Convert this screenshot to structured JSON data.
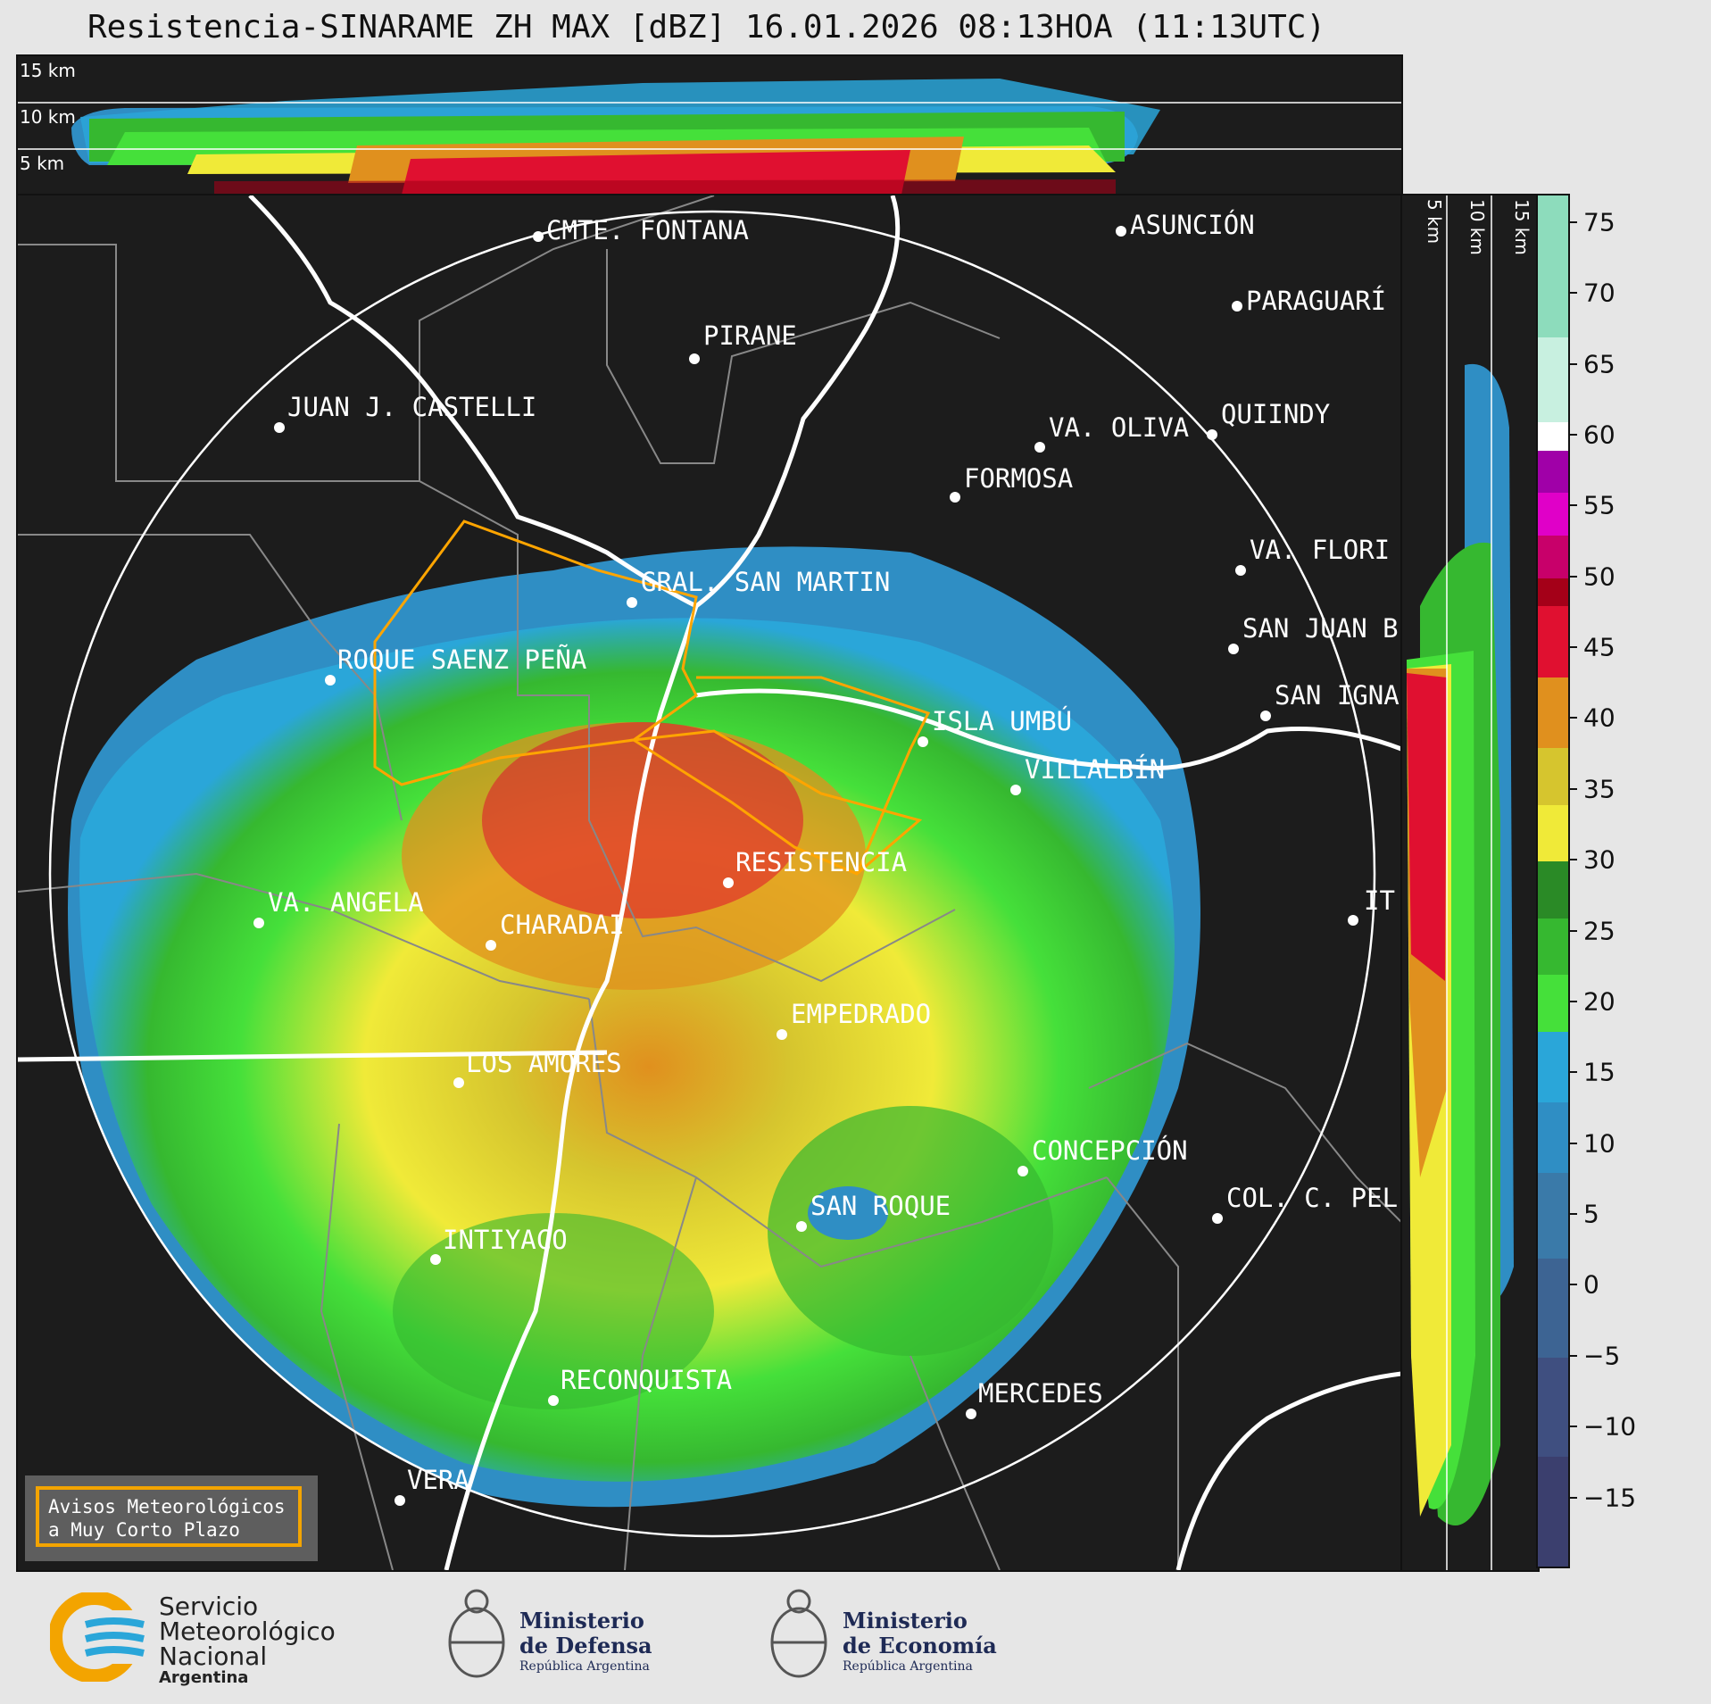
{
  "title": "Resistencia-SINARAME ZH MAX [dBZ] 16.01.2026 08:13HOA (11:13UTC)",
  "top_panel": {
    "height_labels": [
      "15 km",
      "10 km",
      "5 km"
    ]
  },
  "side_panel": {
    "height_labels": [
      "5 km",
      "10 km",
      "15 km"
    ]
  },
  "colorbar": {
    "unit": "dBZ",
    "min": -20,
    "max": 77,
    "ticks": [
      "75",
      "70",
      "65",
      "60",
      "55",
      "50",
      "45",
      "40",
      "35",
      "30",
      "25",
      "20",
      "15",
      "10",
      "5",
      "0",
      "−5",
      "−10",
      "−15"
    ],
    "tick_values": [
      75,
      70,
      65,
      60,
      55,
      50,
      45,
      40,
      35,
      30,
      25,
      20,
      15,
      10,
      5,
      0,
      -5,
      -10,
      -15
    ],
    "colors": [
      {
        "from": -20,
        "to": -12,
        "color": "#3b3f6e"
      },
      {
        "from": -12,
        "to": -5,
        "color": "#3f4f80"
      },
      {
        "from": -5,
        "to": 2,
        "color": "#3d6493"
      },
      {
        "from": 2,
        "to": 8,
        "color": "#3a7aa9"
      },
      {
        "from": 8,
        "to": 13,
        "color": "#2f8ec4"
      },
      {
        "from": 13,
        "to": 18,
        "color": "#2aa6d9"
      },
      {
        "from": 18,
        "to": 22,
        "color": "#45e03a"
      },
      {
        "from": 22,
        "to": 26,
        "color": "#36b830"
      },
      {
        "from": 26,
        "to": 30,
        "color": "#2a8a26"
      },
      {
        "from": 30,
        "to": 34,
        "color": "#f0ea38"
      },
      {
        "from": 34,
        "to": 38,
        "color": "#d6c52e"
      },
      {
        "from": 38,
        "to": 43,
        "color": "#e0901e"
      },
      {
        "from": 43,
        "to": 48,
        "color": "#e01030"
      },
      {
        "from": 48,
        "to": 50,
        "color": "#a40018"
      },
      {
        "from": 50,
        "to": 53,
        "color": "#c8006a"
      },
      {
        "from": 53,
        "to": 56,
        "color": "#e000c8"
      },
      {
        "from": 56,
        "to": 59,
        "color": "#a000a8"
      },
      {
        "from": 59,
        "to": 61,
        "color": "#ffffff"
      },
      {
        "from": 61,
        "to": 67,
        "color": "#c8f0e0"
      },
      {
        "from": 67,
        "to": 77,
        "color": "#8ddcbc"
      }
    ]
  },
  "cities": [
    {
      "name": "CMTE. FONTANA",
      "dot": true
    },
    {
      "name": "ASUNCIÓN",
      "dot": true
    },
    {
      "name": "PARAGUARÍ",
      "dot": true
    },
    {
      "name": "PIRANE",
      "dot": true
    },
    {
      "name": "JUAN J. CASTELLI",
      "dot": true
    },
    {
      "name": "VA. OLIVA",
      "dot": true
    },
    {
      "name": "QUIINDY",
      "dot": true
    },
    {
      "name": "FORMOSA",
      "dot": true
    },
    {
      "name": "VA. FLORI",
      "dot": true
    },
    {
      "name": "GRAL. SAN MARTIN",
      "dot": true
    },
    {
      "name": "SAN JUAN B",
      "dot": true
    },
    {
      "name": "ROQUE SAENZ PEÑA",
      "dot": true
    },
    {
      "name": "SAN IGNA",
      "dot": true
    },
    {
      "name": "ISLA UMBÚ",
      "dot": true
    },
    {
      "name": "VILLALBÍN",
      "dot": true
    },
    {
      "name": "RESISTENCIA",
      "dot": true
    },
    {
      "name": "VA. ANGELA",
      "dot": true
    },
    {
      "name": "CHARADAI",
      "dot": true
    },
    {
      "name": "IT",
      "dot": true
    },
    {
      "name": "EMPEDRADO",
      "dot": true
    },
    {
      "name": "LOS AMORES",
      "dot": true
    },
    {
      "name": "CONCEPCIÓN",
      "dot": true
    },
    {
      "name": "SAN ROQUE",
      "dot": true
    },
    {
      "name": "COL. C. PEL",
      "dot": true
    },
    {
      "name": "INTIYACO",
      "dot": true
    },
    {
      "name": "RECONQUISTA",
      "dot": true
    },
    {
      "name": "MERCEDES",
      "dot": true
    },
    {
      "name": "VERA",
      "dot": true
    }
  ],
  "warning_box": {
    "line1": "Avisos Meteorológicos",
    "line2": "a Muy Corto Plazo"
  },
  "logos": {
    "smn": {
      "line1": "Servicio",
      "line2": "Meteorológico",
      "line3": "Nacional",
      "line4": "Argentina"
    },
    "defensa": {
      "line1": "Ministerio",
      "line2": "de Defensa",
      "line3": "República Argentina"
    },
    "economia": {
      "line1": "Ministerio",
      "line2": "de Economía",
      "line3": "República Argentina"
    }
  },
  "colors": {
    "background": "#1c1c1c",
    "page": "#e6e6e6",
    "warning_border": "#f3a400",
    "warning_polygon": "#ffa500"
  }
}
